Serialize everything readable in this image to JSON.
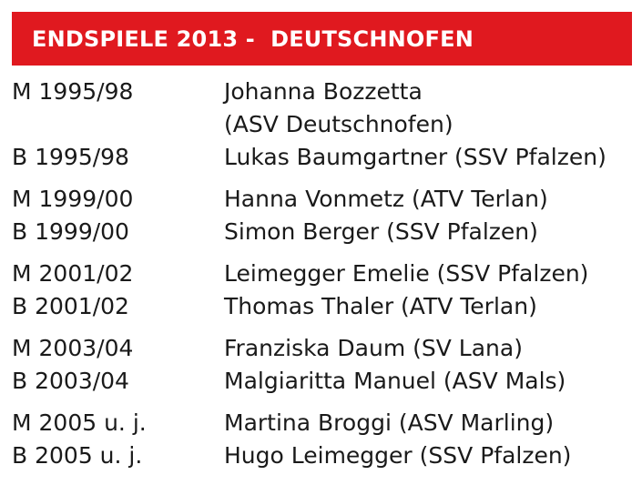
{
  "header": {
    "title": "ENDSPIELE 2013 -  DEUTSCHNOFEN"
  },
  "colors": {
    "header_bg": "#e0191f",
    "header_text": "#ffffff",
    "body_text": "#1a1a1a"
  },
  "groups": [
    {
      "rows": [
        {
          "category": "M 1995/98",
          "winner": "Johanna Bozzetta",
          "winner_cont": "(ASV Deutschnofen)"
        },
        {
          "category": "B 1995/98",
          "winner": "Lukas Baumgartner (SSV Pfalzen)"
        }
      ]
    },
    {
      "rows": [
        {
          "category": "M 1999/00",
          "winner": "Hanna Vonmetz (ATV Terlan)"
        },
        {
          "category": "B 1999/00",
          "winner": "Simon Berger (SSV Pfalzen)"
        }
      ]
    },
    {
      "rows": [
        {
          "category": "M 2001/02",
          "winner": "Leimegger Emelie (SSV Pfalzen)"
        },
        {
          "category": "B 2001/02",
          "winner": "Thomas Thaler (ATV Terlan)"
        }
      ]
    },
    {
      "rows": [
        {
          "category": "M 2003/04",
          "winner": "Franziska Daum (SV Lana)"
        },
        {
          "category": "B 2003/04",
          "winner": "Malgiaritta Manuel (ASV Mals)"
        }
      ]
    },
    {
      "rows": [
        {
          "category": "M 2005 u. j.",
          "winner": "Martina Broggi (ASV Marling)"
        },
        {
          "category": "B 2005 u. j.",
          "winner": "Hugo Leimegger (SSV Pfalzen)"
        }
      ]
    }
  ]
}
